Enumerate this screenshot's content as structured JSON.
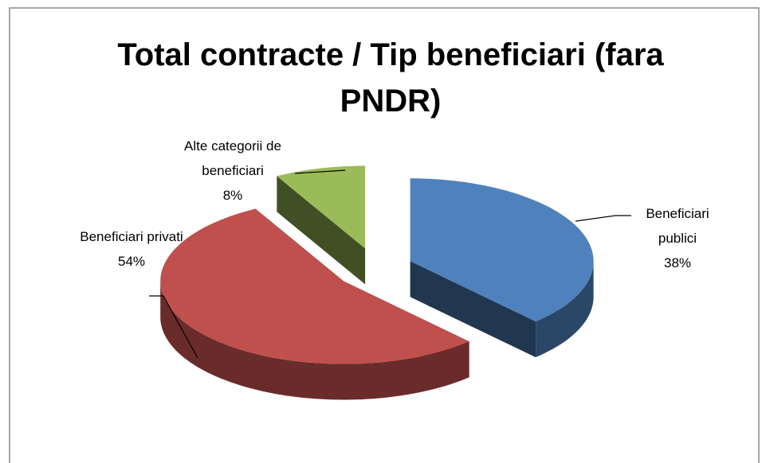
{
  "chart_data": {
    "type": "pie3d",
    "title": "Total contracte / Tip beneficiari (fara PNDR)",
    "categories": [
      "Beneficiari publici",
      "Beneficiari privati",
      "Alte categorii de beneficiari"
    ],
    "values": [
      38,
      54,
      8
    ],
    "value_labels": [
      "38%",
      "54%",
      "8%"
    ],
    "colors": [
      "#4f81bd",
      "#c0504d",
      "#9bbb59"
    ]
  }
}
